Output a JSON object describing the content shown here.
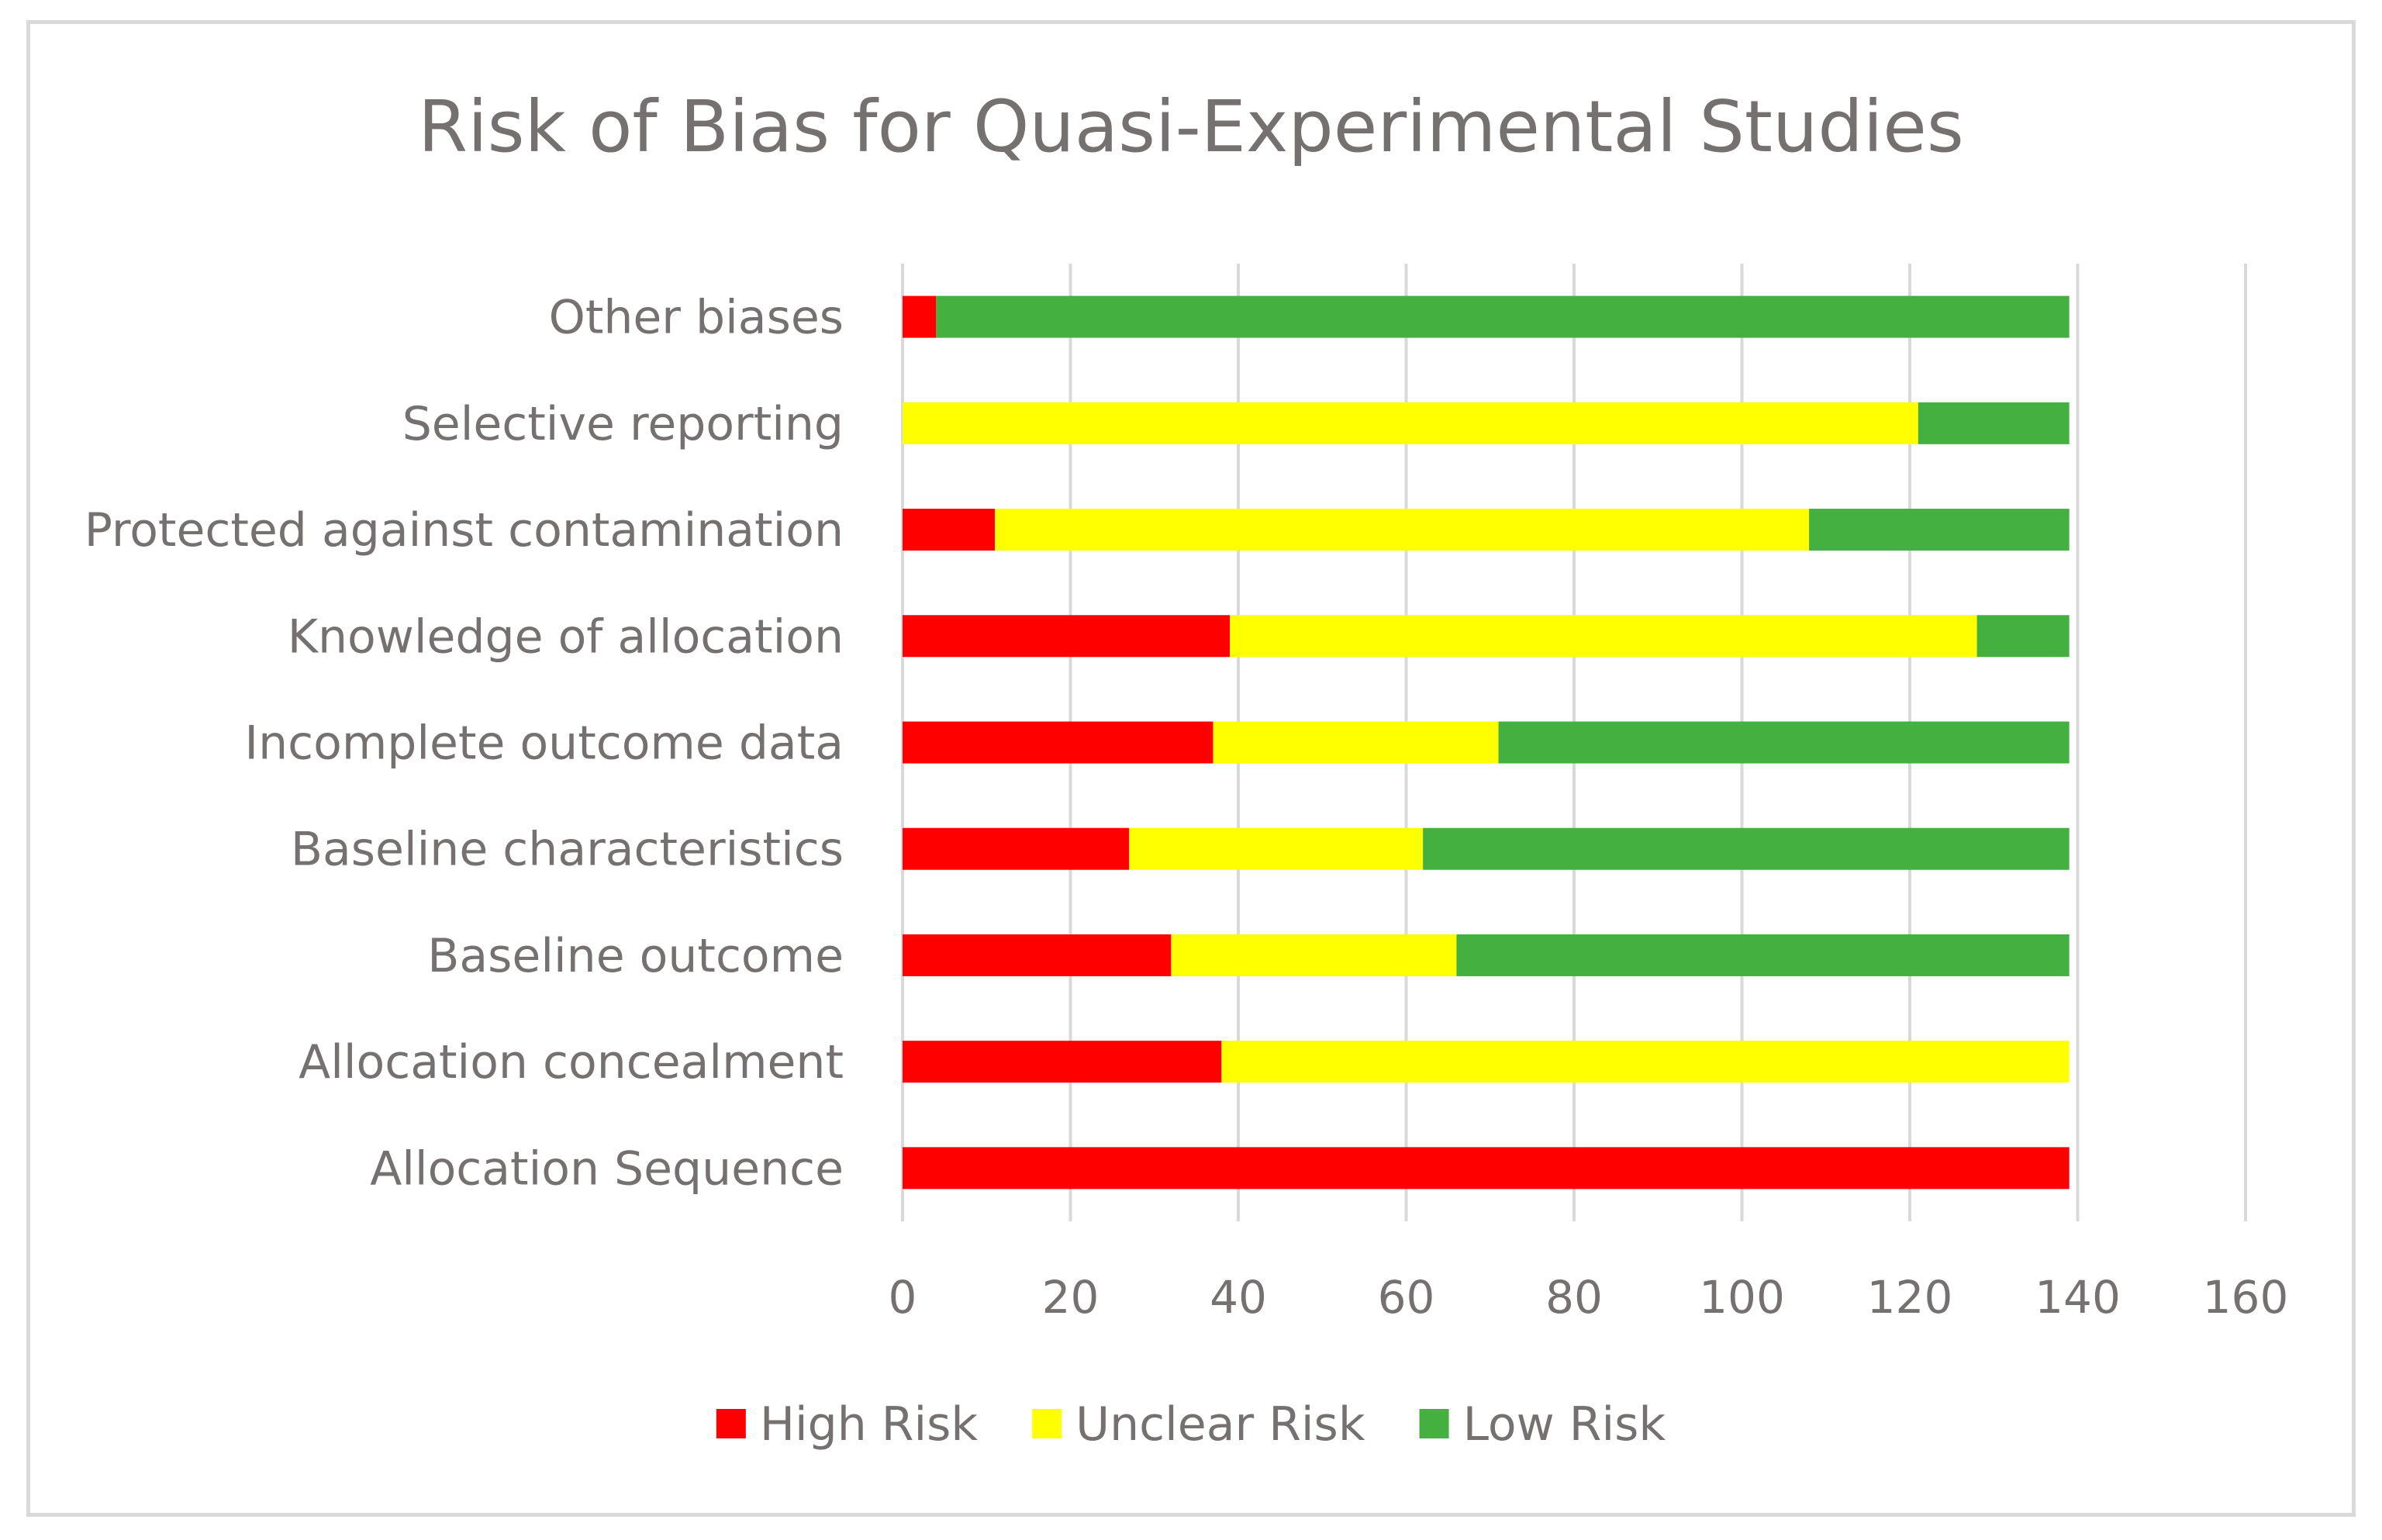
{
  "chart_data": {
    "type": "bar",
    "orientation": "horizontal",
    "stacked": true,
    "title": "Risk of Bias for Quasi-Experimental Studies",
    "xlabel": "",
    "ylabel": "",
    "xlim": [
      0,
      160
    ],
    "ticks": [
      "0",
      "20",
      "40",
      "60",
      "80",
      "100",
      "120",
      "140",
      "160"
    ],
    "tick_values": [
      0,
      20,
      40,
      60,
      80,
      100,
      120,
      140,
      160
    ],
    "grid": true,
    "legend_position": "bottom",
    "categories": [
      "Allocation Sequence",
      "Allocation concealment",
      "Baseline outcome",
      "Baseline characteristics",
      "Incomplete outcome data",
      "Knowledge of allocation",
      "Protected against contamination",
      "Selective reporting",
      "Other biases"
    ],
    "series": [
      {
        "name": "High Risk",
        "color": "#ff0000",
        "values": [
          139,
          38,
          32,
          27,
          37,
          39,
          11,
          0,
          4
        ]
      },
      {
        "name": "Unclear Risk",
        "color": "#ffff00",
        "values": [
          0,
          101,
          34,
          35,
          34,
          89,
          97,
          121,
          0
        ]
      },
      {
        "name": "Low Risk",
        "color": "#43b03f",
        "values": [
          0,
          0,
          73,
          77,
          68,
          11,
          31,
          18,
          135
        ]
      }
    ]
  }
}
